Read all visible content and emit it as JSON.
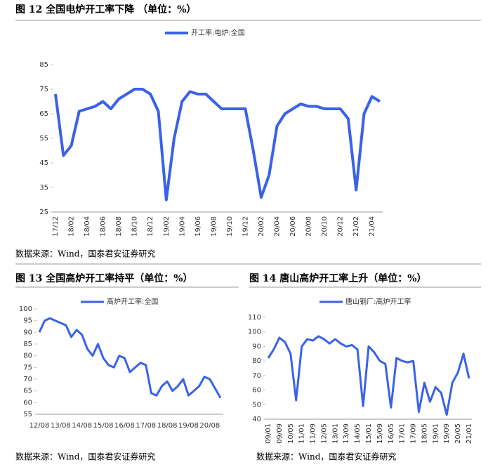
{
  "chart_data": [
    {
      "type": "line",
      "title": "图 12  全国电炉开工率下降   （单位：%）",
      "source": "数据来源：Wind，国泰君安证券研究",
      "categories": [
        "17/12",
        null,
        "18/02",
        null,
        "18/04",
        null,
        "18/06",
        null,
        "18/08",
        null,
        "18/10",
        null,
        "18/12",
        null,
        "19/02",
        null,
        "19/04",
        null,
        "19/06",
        null,
        "19/08",
        null,
        "19/10",
        null,
        "19/12",
        null,
        "20/02",
        null,
        "20/04",
        null,
        "20/06",
        null,
        "20/08",
        null,
        "20/10",
        null,
        "20/12",
        null,
        "21/02",
        null,
        "21/04",
        null
      ],
      "series": [
        {
          "name": "开工率:电炉:全国",
          "color": "#3a62e8",
          "values": [
            73,
            48,
            52,
            66,
            67,
            68,
            70,
            67,
            71,
            73,
            75,
            75,
            73,
            66,
            30,
            55,
            70,
            74,
            73,
            73,
            70,
            67,
            67,
            67,
            67,
            50,
            31,
            40,
            60,
            65,
            67,
            69,
            68,
            68,
            67,
            67,
            67,
            63,
            34,
            65,
            72,
            70
          ]
        }
      ],
      "ylim": [
        25,
        85
      ],
      "yticks": [
        25,
        35,
        45,
        55,
        65,
        75,
        85
      ],
      "legend": "top",
      "grid": false
    },
    {
      "type": "line",
      "title": "图 13  全国高炉开工率持平（单位：%）",
      "source": "数据来源：Wind，国泰君安证券研究",
      "categories": [
        "12/08",
        null,
        null,
        null,
        "13/08",
        null,
        null,
        null,
        "14/08",
        null,
        null,
        null,
        "15/08",
        null,
        null,
        null,
        "16/08",
        null,
        null,
        null,
        "17/08",
        null,
        null,
        null,
        "18/08",
        null,
        null,
        null,
        "19/08",
        null,
        null,
        null,
        "20/08",
        null,
        null
      ],
      "series": [
        {
          "name": "高炉开工率:全国",
          "color": "#3a62e8",
          "values": [
            90,
            95,
            96,
            95,
            94,
            93,
            88,
            91,
            89,
            83,
            80,
            85,
            79,
            76,
            75,
            80,
            79,
            73,
            75,
            77,
            76,
            64,
            63,
            67,
            69,
            65,
            67,
            70,
            63,
            65,
            67,
            71,
            70,
            66,
            62
          ]
        }
      ],
      "ylim": [
        55,
        100
      ],
      "yticks": [
        55,
        60,
        65,
        70,
        75,
        80,
        85,
        90,
        95,
        100
      ],
      "legend": "top",
      "grid": false
    },
    {
      "type": "line",
      "title": "图 14  唐山高炉开工率上升（单位：%）",
      "source": "数据来源：Wind，国泰君安证券研究",
      "categories": [
        "09/01",
        null,
        "09/09",
        null,
        "10/05",
        null,
        "11/01",
        null,
        "11/09",
        null,
        "12/05",
        null,
        "13/01",
        null,
        "13/09",
        null,
        "14/05",
        null,
        "15/01",
        null,
        "15/09",
        null,
        "16/05",
        null,
        "17/01",
        null,
        "17/09",
        null,
        "18/05",
        null,
        "19/01",
        null,
        "19/09",
        null,
        "20/05",
        null,
        "21/01"
      ],
      "series": [
        {
          "name": "唐山钢厂:高炉开工率",
          "color": "#3a62e8",
          "values": [
            82,
            88,
            96,
            93,
            85,
            53,
            90,
            95,
            94,
            97,
            95,
            92,
            95,
            92,
            90,
            91,
            88,
            49,
            90,
            86,
            80,
            78,
            48,
            82,
            80,
            79,
            80,
            45,
            65,
            52,
            62,
            58,
            43,
            65,
            72,
            85,
            68
          ]
        }
      ],
      "ylim": [
        40,
        110
      ],
      "yticks": [
        40,
        50,
        60,
        70,
        80,
        90,
        100,
        110
      ],
      "legend": "top",
      "grid": false
    }
  ]
}
